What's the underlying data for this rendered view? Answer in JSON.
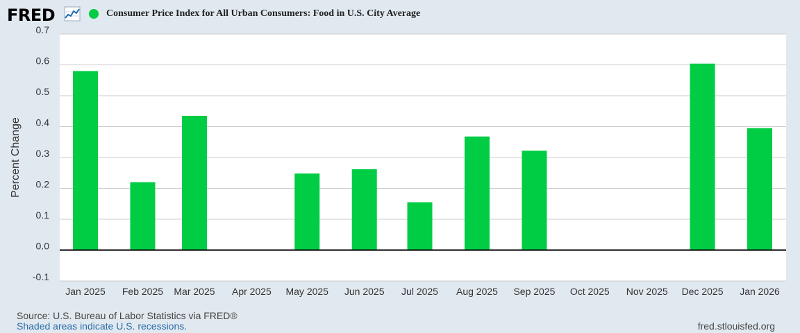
{
  "header": {
    "logo_text": "FRED",
    "logo_icon": "line-graph-icon",
    "title": "Consumer Price Index for All Urban Consumers: Food in U.S. City Average"
  },
  "colors": {
    "series": "#00cc44",
    "plot_background": "#ffffff",
    "page_background": "#e1e9f0",
    "grid": "#cccccc",
    "zero_line": "#000000"
  },
  "footer": {
    "source": "Source: U.S. Bureau of Labor Statistics via FRED®",
    "recessions": "Shaded areas indicate U.S. recessions.",
    "url": "fred.stlouisfed.org"
  },
  "chart_data": {
    "type": "bar",
    "title": "Consumer Price Index for All Urban Consumers: Food in U.S. City Average",
    "ylabel": "Percent Change",
    "xlabel": "",
    "ylim": [
      -0.1,
      0.7
    ],
    "yticks": [
      "-0.1",
      "0.0",
      "0.1",
      "0.2",
      "0.3",
      "0.4",
      "0.5",
      "0.6",
      "0.7"
    ],
    "grid": true,
    "categories": [
      "Jan 2025",
      "Feb 2025",
      "Mar 2025",
      "Apr 2025",
      "May 2025",
      "Jun 2025",
      "Jul 2025",
      "Aug 2025",
      "Sep 2025",
      "Oct 2025",
      "Nov 2025",
      "Dec 2025",
      "Jan 2026"
    ],
    "dates": [
      "2025-01-01",
      "2025-02-01",
      "2025-03-01",
      "2025-04-01",
      "2025-05-01",
      "2025-06-01",
      "2025-07-01",
      "2025-08-01",
      "2025-09-01",
      "2025-10-01",
      "2025-11-01",
      "2025-12-01",
      "2026-01-01"
    ],
    "series": [
      {
        "values": [
          0.58,
          0.22,
          0.435,
          null,
          0.248,
          0.262,
          0.155,
          0.368,
          0.322,
          null,
          null,
          0.604,
          0.395
        ]
      }
    ]
  }
}
